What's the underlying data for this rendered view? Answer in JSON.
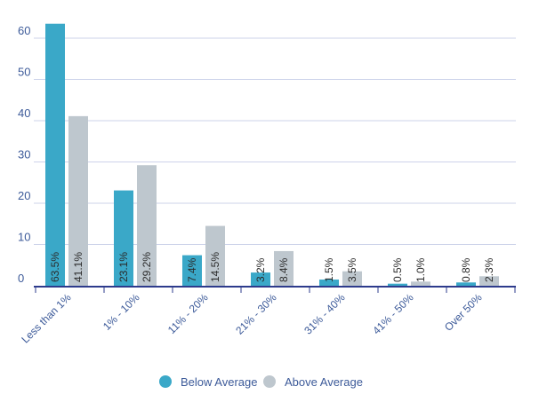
{
  "chart_data": {
    "type": "bar",
    "categories": [
      "Less than 1%",
      "1% - 10%",
      "11% - 20%",
      "21% - 30%",
      "31% - 40%",
      "41% - 50%",
      "Over 50%"
    ],
    "series": [
      {
        "name": "Below Average",
        "values": [
          63.5,
          23.1,
          7.4,
          3.2,
          1.5,
          0.5,
          0.8
        ],
        "labels": [
          "63.5%",
          "23.1%",
          "7.4%",
          "3.2%",
          "1.5%",
          "0.5%",
          "0.8%"
        ],
        "color": "#3aa8c8"
      },
      {
        "name": "Above Average",
        "values": [
          41.1,
          29.2,
          14.5,
          8.4,
          3.5,
          1.0,
          2.3
        ],
        "labels": [
          "41.1%",
          "29.2%",
          "14.5%",
          "8.4%",
          "3.5%",
          "1.0%",
          "2.3%"
        ],
        "color": "#bec7ce"
      }
    ],
    "yticks": [
      "0",
      "10",
      "20",
      "30",
      "40",
      "50",
      "60"
    ],
    "ylim": [
      0,
      60
    ],
    "grid": true,
    "legend": "bottom-center",
    "axis_color": "#2d3b8c",
    "grid_color": "#cdd3ea"
  }
}
